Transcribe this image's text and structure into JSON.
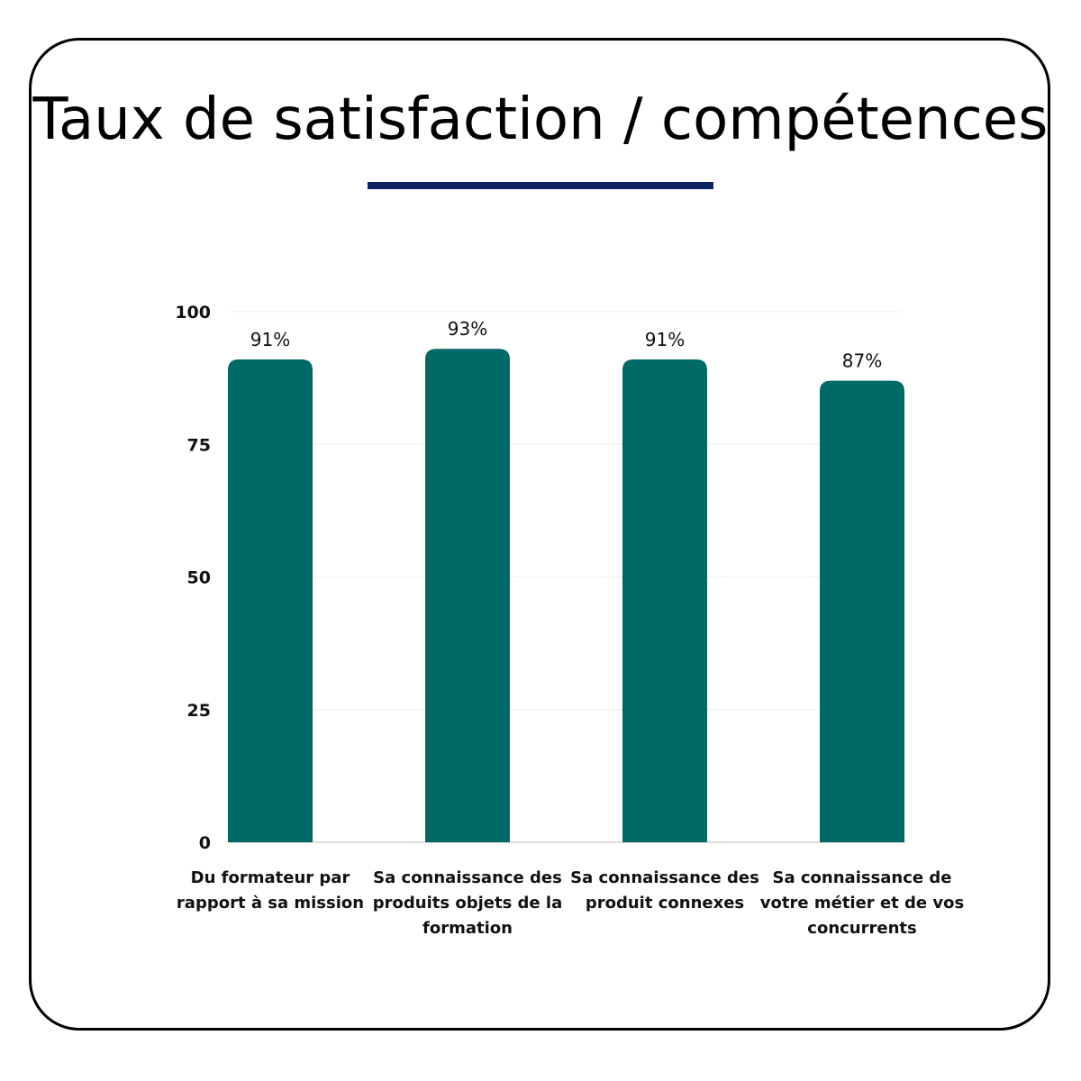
{
  "title": "Taux de satisfaction / compétences",
  "colors": {
    "bar": "#006a67",
    "title_rule": "#0c2461",
    "gridline": "#eeeeee",
    "axis": "#bbbbbb"
  },
  "chart_data": {
    "type": "bar",
    "categories": [
      "Du formateur par rapport à sa mission",
      "Sa connaissance des produits objets de la formation",
      "Sa connaissance des produit connexes",
      "Sa connaissance de votre métier et de vos concurrents"
    ],
    "values": [
      91,
      93,
      91,
      87
    ],
    "data_labels": [
      "91%",
      "93%",
      "91%",
      "87%"
    ],
    "y_ticks": [
      "0",
      "25",
      "50",
      "75",
      "100"
    ],
    "ylim": [
      0,
      100
    ],
    "grid": true,
    "legend": "none"
  }
}
